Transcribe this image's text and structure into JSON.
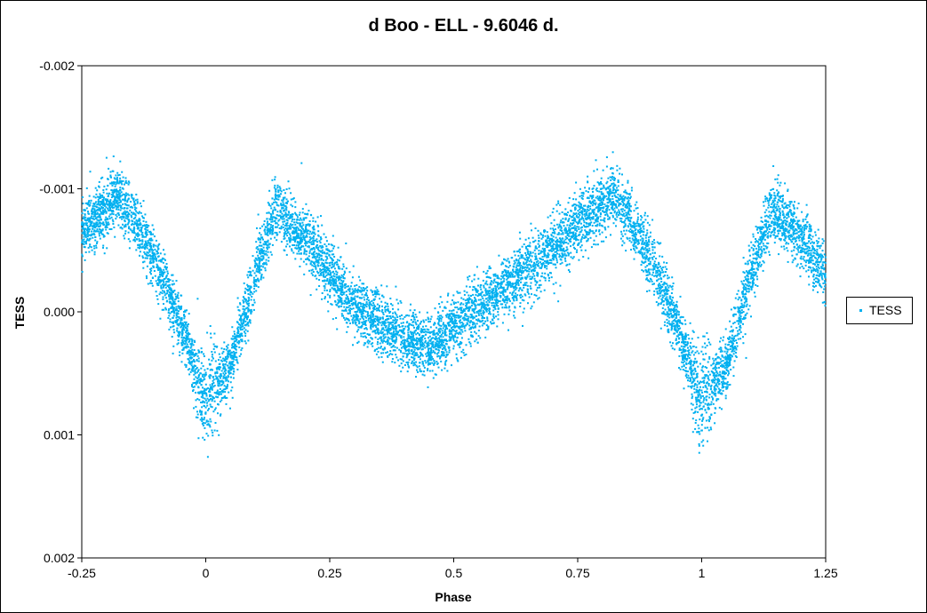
{
  "chart_data": {
    "type": "scatter",
    "title": "d Boo - ELL - 9.6046 d.",
    "xlabel": "Phase",
    "ylabel": "TESS",
    "xlim": [
      -0.25,
      1.25
    ],
    "ylim": [
      0.002,
      -0.002
    ],
    "y_axis_reversed": true,
    "x_ticks": [
      "-0.25",
      "0",
      "0.25",
      "0.5",
      "0.75",
      "1",
      "1.25"
    ],
    "y_ticks": [
      "-0.002",
      "-0.001",
      "0.000",
      "0.001",
      "0.002"
    ],
    "grid": false,
    "legend_position": "right",
    "series": [
      {
        "name": "TESS",
        "color": "#00b0f0",
        "marker": "small-diamond",
        "curve_phase": [
          -0.25,
          -0.2,
          -0.18,
          -0.15,
          -0.1,
          -0.05,
          -0.02,
          0.0,
          0.05,
          0.1,
          0.14,
          0.2,
          0.3,
          0.4,
          0.45,
          0.5,
          0.6,
          0.7,
          0.75,
          0.82,
          0.85,
          0.9,
          0.95,
          0.98,
          1.0,
          1.05,
          1.1,
          1.14,
          1.2,
          1.25
        ],
        "curve_mean": [
          -0.00065,
          -0.00085,
          -0.00095,
          -0.0008,
          -0.0004,
          0.0001,
          0.0005,
          0.0007,
          0.00045,
          -0.0003,
          -0.00085,
          -0.0006,
          -5e-05,
          0.0002,
          0.0003,
          0.00012,
          -0.0002,
          -0.0005,
          -0.0007,
          -0.00095,
          -0.0008,
          -0.0004,
          0.0001,
          0.0005,
          0.0007,
          0.00045,
          -0.0003,
          -0.00085,
          -0.0006,
          -0.0003
        ],
        "scatter_spread": 0.00022,
        "n_points": 9000
      }
    ]
  }
}
